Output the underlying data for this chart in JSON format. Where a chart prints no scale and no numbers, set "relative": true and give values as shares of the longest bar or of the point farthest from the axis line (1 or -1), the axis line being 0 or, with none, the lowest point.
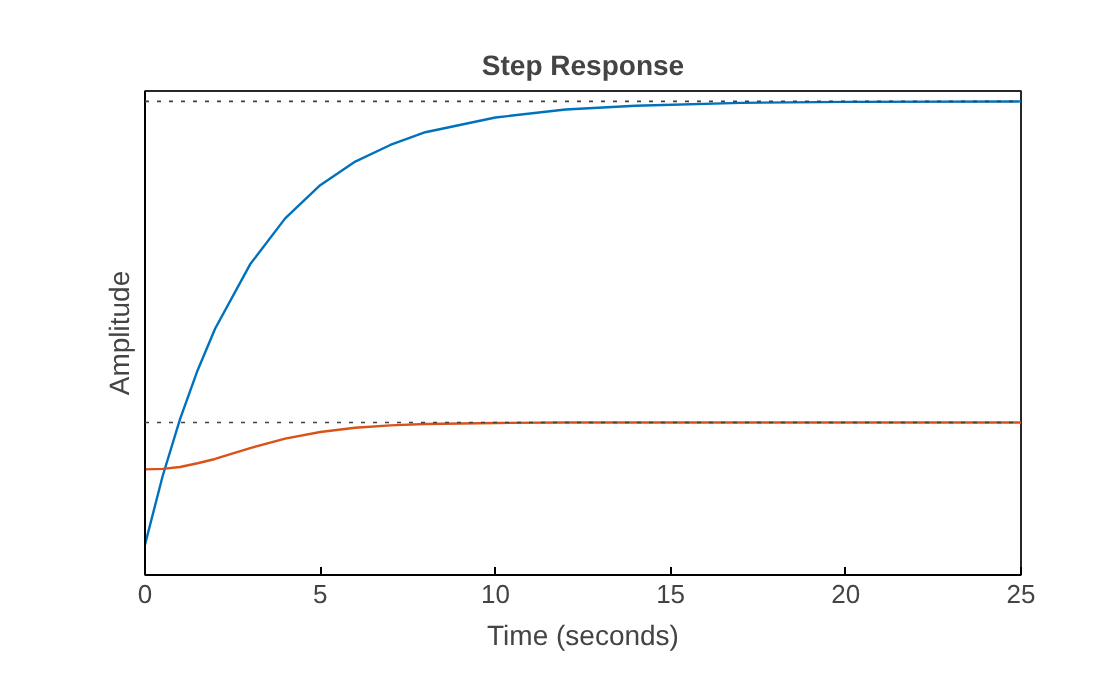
{
  "chart_data": {
    "type": "line",
    "title": "Step Response",
    "xlabel": "Time (seconds)",
    "ylabel": "Amplitude",
    "relative": true,
    "xlim": [
      0,
      25
    ],
    "xticks": [
      0,
      5,
      10,
      15,
      20,
      25
    ],
    "grid": false,
    "line_style": "solid",
    "x": [
      0,
      0.5,
      1,
      1.5,
      2,
      3,
      4,
      5,
      6,
      7,
      8,
      10,
      12,
      14,
      17,
      20,
      25
    ],
    "series": [
      {
        "color": "#0072bd",
        "values": [
          0.064,
          0.208,
          0.329,
          0.432,
          0.52,
          0.656,
          0.753,
          0.823,
          0.873,
          0.908,
          0.935,
          0.966,
          0.983,
          0.991,
          0.997,
          0.999,
          1.0
        ]
      },
      {
        "color": "#d95319",
        "values": [
          0.223,
          0.224,
          0.228,
          0.236,
          0.245,
          0.268,
          0.288,
          0.302,
          0.311,
          0.316,
          0.319,
          0.321,
          0.322,
          0.322,
          0.322,
          0.322,
          0.322
        ]
      }
    ],
    "ref_lines": [
      {
        "axis": "y",
        "value": 1.0,
        "color": "#404040",
        "line_style": "dotted"
      },
      {
        "axis": "y",
        "value": 0.322,
        "color": "#404040",
        "line_style": "dotted"
      }
    ]
  }
}
